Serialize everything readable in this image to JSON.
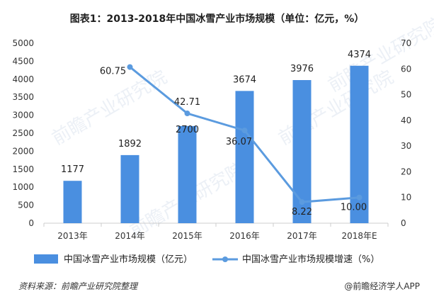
{
  "title": "图表1：2013-2018年中国冰雪产业市场规模（单位：亿元，%）",
  "source": "资料来源：前瞻产业研究院整理",
  "brand": "@前瞻经济学人APP",
  "watermark": "前瞻产业研究院",
  "colors": {
    "bar": "#4a8fe0",
    "line": "#5b9bdf",
    "axis": "#cccccc"
  },
  "chart_data": {
    "type": "bar+line",
    "categories": [
      "2013年",
      "2014年",
      "2015年",
      "2016年",
      "2017年",
      "2018年E"
    ],
    "series": [
      {
        "name": "中国冰雪产业市场规模（亿元）",
        "type": "bar",
        "axis": "left",
        "values": [
          1177,
          1892,
          2700,
          3674,
          3976,
          4374
        ],
        "labels": [
          "1177",
          "1892",
          "2700",
          "3674",
          "3976",
          "4374"
        ]
      },
      {
        "name": "中国冰雪产业市场规模增速（%）",
        "type": "line",
        "axis": "right",
        "values": [
          null,
          60.75,
          42.71,
          36.07,
          8.22,
          10.0
        ],
        "labels": [
          "",
          "60.75",
          "42.71",
          "36.07",
          "8.22",
          "10.00"
        ]
      }
    ],
    "left_axis": {
      "min": 0,
      "max": 5000,
      "ticks": [
        "0",
        "500",
        "1000",
        "1500",
        "2000",
        "2500",
        "3000",
        "3500",
        "4000",
        "4500",
        "5000"
      ]
    },
    "right_axis": {
      "min": 0,
      "max": 70,
      "ticks": [
        "0",
        "10",
        "20",
        "30",
        "40",
        "50",
        "60",
        "70"
      ]
    },
    "legend_position": "bottom",
    "grid": false
  }
}
